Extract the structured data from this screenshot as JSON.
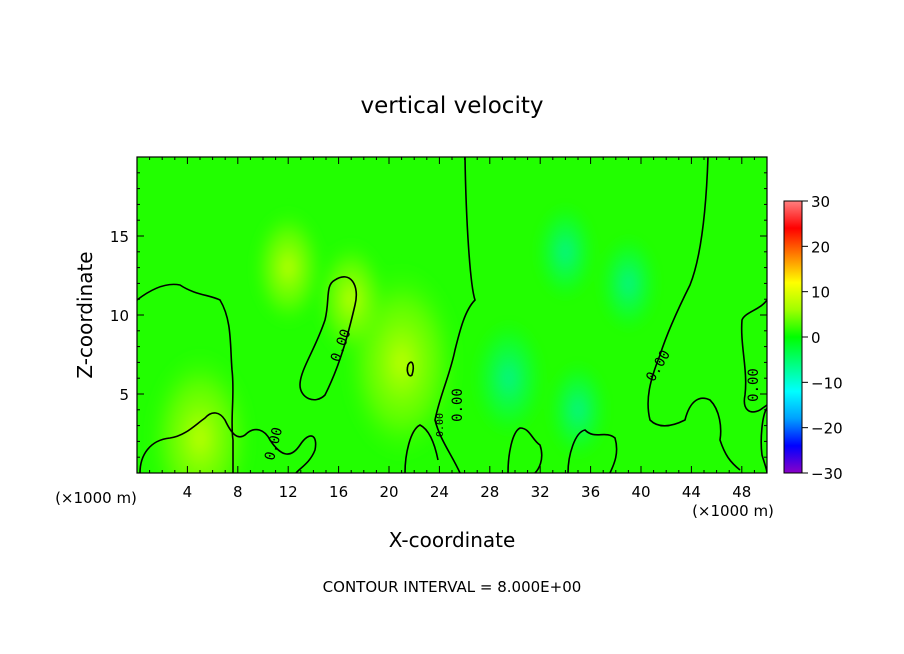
{
  "chart_data": {
    "type": "heatmap",
    "title": "vertical velocity",
    "xlabel": "X-coordinate",
    "ylabel": "Z-coordinate",
    "x_unit_label": "(×1000 m)",
    "x_unit_label_right": "(×1000 m)",
    "xlim": [
      0,
      50
    ],
    "ylim": [
      0,
      20
    ],
    "x_ticks": [
      "4",
      "8",
      "12",
      "16",
      "20",
      "24",
      "28",
      "32",
      "36",
      "40",
      "44",
      "48"
    ],
    "y_ticks": [
      "5",
      "10",
      "15"
    ],
    "colorbar": {
      "min": -30,
      "max": 30,
      "ticks": [
        "30",
        "20",
        "10",
        "0",
        "−10",
        "−20",
        "−30"
      ],
      "colors": [
        "#8a00c8",
        "#0000ff",
        "#00a0ff",
        "#00ffff",
        "#00ff80",
        "#00ff00",
        "#a0ff00",
        "#ffff00",
        "#ff8000",
        "#ff0000",
        "#ff8080"
      ]
    },
    "contour_labels": [
      "0.00",
      "0.00",
      "0.00",
      "0.00",
      "0.00",
      "0.00"
    ],
    "contour_level": 0,
    "footer": "CONTOUR INTERVAL = 8.000E+00",
    "background_value": 0,
    "features": [
      {
        "kind": "updraft",
        "x": 5,
        "z": 2.2,
        "w": 6
      },
      {
        "kind": "updraft",
        "x": 21,
        "z": 7,
        "w": 7
      },
      {
        "kind": "updraft",
        "x": 12,
        "z": 13,
        "w": 3
      },
      {
        "kind": "updraft",
        "x": 17,
        "z": 11,
        "w": 3
      },
      {
        "kind": "downdraft",
        "x": 29.5,
        "z": 6,
        "w": -3
      },
      {
        "kind": "downdraft",
        "x": 34,
        "z": 14,
        "w": -2
      },
      {
        "kind": "downdraft",
        "x": 39,
        "z": 12,
        "w": -2
      },
      {
        "kind": "downdraft",
        "x": 35,
        "z": 4,
        "w": -2
      }
    ]
  }
}
